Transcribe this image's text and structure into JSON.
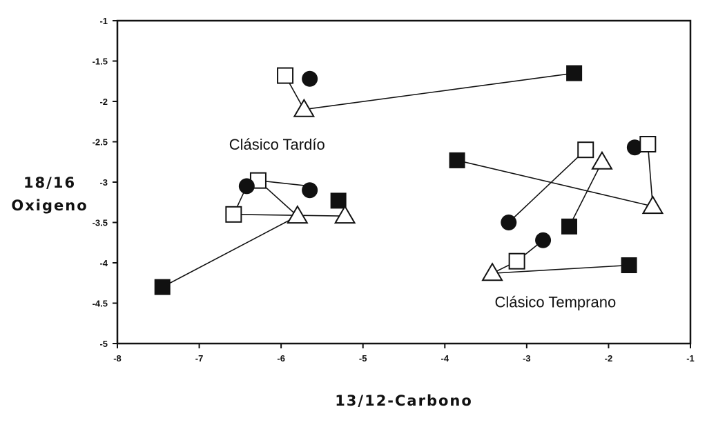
{
  "chart_data": {
    "type": "scatter",
    "xlabel": "13/12-Carbono",
    "ylabel_lines": [
      "18/16",
      "Oxigeno"
    ],
    "xlim": [
      -8,
      -1
    ],
    "ylim": [
      -5,
      -1
    ],
    "x_ticks": [
      -8,
      -7,
      -6,
      -5,
      -4,
      -3,
      -2,
      -1
    ],
    "y_ticks": [
      -1,
      -1.5,
      -2,
      -2.5,
      -3,
      -3.5,
      -4,
      -4.5,
      -5
    ],
    "x_tick_labels": [
      "-8",
      "-7",
      "-6",
      "-5",
      "-4",
      "-3",
      "-2",
      "-1"
    ],
    "y_tick_labels": [
      "-1",
      "-1.5",
      "-2",
      "-2.5",
      "-3",
      "-3.5",
      "-4",
      "-4.5",
      "-5"
    ],
    "grid": false,
    "annotations": [
      {
        "id": "clasico-tardio",
        "text": "Clásico Tardío",
        "x": -6.05,
        "y": -2.6
      },
      {
        "id": "clasico-temprano",
        "text": "Clásico Temprano",
        "x": -2.65,
        "y": -4.55
      }
    ],
    "points": [
      {
        "marker": "open-square",
        "x": -5.95,
        "y": -1.68
      },
      {
        "marker": "filled-circle",
        "x": -5.65,
        "y": -1.72
      },
      {
        "marker": "open-triangle",
        "x": -5.72,
        "y": -2.1
      },
      {
        "marker": "filled-square",
        "x": -2.42,
        "y": -1.65
      },
      {
        "marker": "open-square",
        "x": -6.28,
        "y": -2.98
      },
      {
        "marker": "filled-circle",
        "x": -6.42,
        "y": -3.05
      },
      {
        "marker": "filled-circle",
        "x": -5.65,
        "y": -3.1
      },
      {
        "marker": "filled-square",
        "x": -5.3,
        "y": -3.23
      },
      {
        "marker": "open-square",
        "x": -6.58,
        "y": -3.4
      },
      {
        "marker": "open-triangle",
        "x": -5.8,
        "y": -3.42
      },
      {
        "marker": "open-triangle",
        "x": -5.22,
        "y": -3.42
      },
      {
        "marker": "filled-square",
        "x": -7.45,
        "y": -4.3
      },
      {
        "marker": "filled-square",
        "x": -3.85,
        "y": -2.73
      },
      {
        "marker": "open-square",
        "x": -2.28,
        "y": -2.6
      },
      {
        "marker": "open-triangle",
        "x": -2.08,
        "y": -2.75
      },
      {
        "marker": "filled-circle",
        "x": -1.68,
        "y": -2.57
      },
      {
        "marker": "open-square",
        "x": -1.52,
        "y": -2.53
      },
      {
        "marker": "open-triangle",
        "x": -1.46,
        "y": -3.3
      },
      {
        "marker": "filled-circle",
        "x": -3.22,
        "y": -3.5
      },
      {
        "marker": "filled-square",
        "x": -2.48,
        "y": -3.55
      },
      {
        "marker": "filled-circle",
        "x": -2.8,
        "y": -3.72
      },
      {
        "marker": "open-square",
        "x": -3.12,
        "y": -3.98
      },
      {
        "marker": "open-triangle",
        "x": -3.42,
        "y": -4.13
      },
      {
        "marker": "filled-square",
        "x": -1.75,
        "y": -4.03
      }
    ],
    "segments": [
      {
        "from": [
          -5.95,
          -1.68
        ],
        "to": [
          -5.72,
          -2.1
        ]
      },
      {
        "from": [
          -5.72,
          -2.1
        ],
        "to": [
          -2.42,
          -1.65
        ]
      },
      {
        "from": [
          -6.28,
          -2.98
        ],
        "to": [
          -5.65,
          -3.05
        ]
      },
      {
        "from": [
          -6.28,
          -2.98
        ],
        "to": [
          -5.8,
          -3.42
        ]
      },
      {
        "from": [
          -6.42,
          -3.05
        ],
        "to": [
          -6.58,
          -3.4
        ]
      },
      {
        "from": [
          -6.58,
          -3.4
        ],
        "to": [
          -5.22,
          -3.42
        ]
      },
      {
        "from": [
          -5.8,
          -3.42
        ],
        "to": [
          -7.45,
          -4.3
        ]
      },
      {
        "from": [
          -3.85,
          -2.73
        ],
        "to": [
          -1.46,
          -3.3
        ]
      },
      {
        "from": [
          -1.52,
          -2.53
        ],
        "to": [
          -1.46,
          -3.3
        ]
      },
      {
        "from": [
          -2.28,
          -2.6
        ],
        "to": [
          -3.22,
          -3.5
        ]
      },
      {
        "from": [
          -2.08,
          -2.75
        ],
        "to": [
          -2.48,
          -3.55
        ]
      },
      {
        "from": [
          -2.8,
          -3.72
        ],
        "to": [
          -3.12,
          -3.98
        ]
      },
      {
        "from": [
          -3.12,
          -3.98
        ],
        "to": [
          -3.42,
          -4.13
        ]
      },
      {
        "from": [
          -3.42,
          -4.13
        ],
        "to": [
          -1.75,
          -4.03
        ]
      }
    ]
  }
}
